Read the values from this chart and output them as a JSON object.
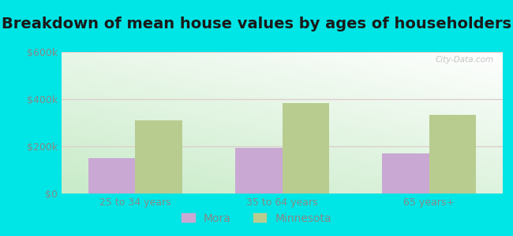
{
  "title": "Breakdown of mean house values by ages of householders",
  "categories": [
    "25 to 34 years",
    "35 to 64 years",
    "65 years+"
  ],
  "mora_values": [
    150000,
    195000,
    170000
  ],
  "minnesota_values": [
    310000,
    385000,
    335000
  ],
  "mora_color": "#c9a8d4",
  "minnesota_color": "#b8cc90",
  "ylim": [
    0,
    600000
  ],
  "yticks": [
    0,
    200000,
    400000,
    600000
  ],
  "ytick_labels": [
    "$0",
    "$200k",
    "$400k",
    "$600k"
  ],
  "bar_width": 0.32,
  "background_outer": "#00e5e5",
  "watermark": "City-Data.com",
  "legend_mora": "Mora",
  "legend_minnesota": "Minnesota",
  "title_fontsize": 14,
  "tick_fontsize": 9,
  "legend_fontsize": 10,
  "grid_color": "#ddcccc",
  "tick_color": "#888888"
}
